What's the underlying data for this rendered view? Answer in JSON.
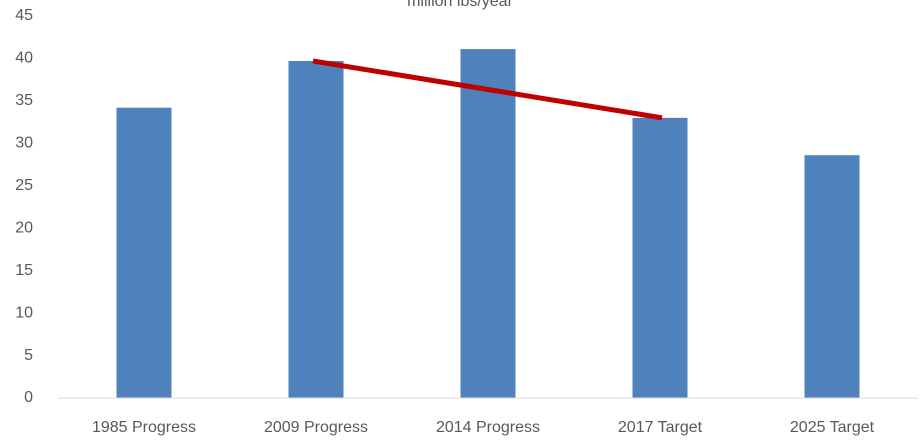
{
  "chart_data": {
    "type": "bar",
    "title": "million lbs/year",
    "categories": [
      "1985 Progress",
      "2009 Progress",
      "2014 Progress",
      "2017 Target",
      "2025 Target"
    ],
    "values": [
      34.2,
      39.7,
      41.1,
      33.0,
      28.6
    ],
    "color": "#4f81bd",
    "ylim": [
      0,
      45
    ],
    "yticks": [
      0,
      5,
      10,
      15,
      20,
      25,
      30,
      35,
      40,
      45
    ],
    "grid": false,
    "trend": {
      "from": 1,
      "to": 3,
      "color": "#c00000"
    }
  }
}
